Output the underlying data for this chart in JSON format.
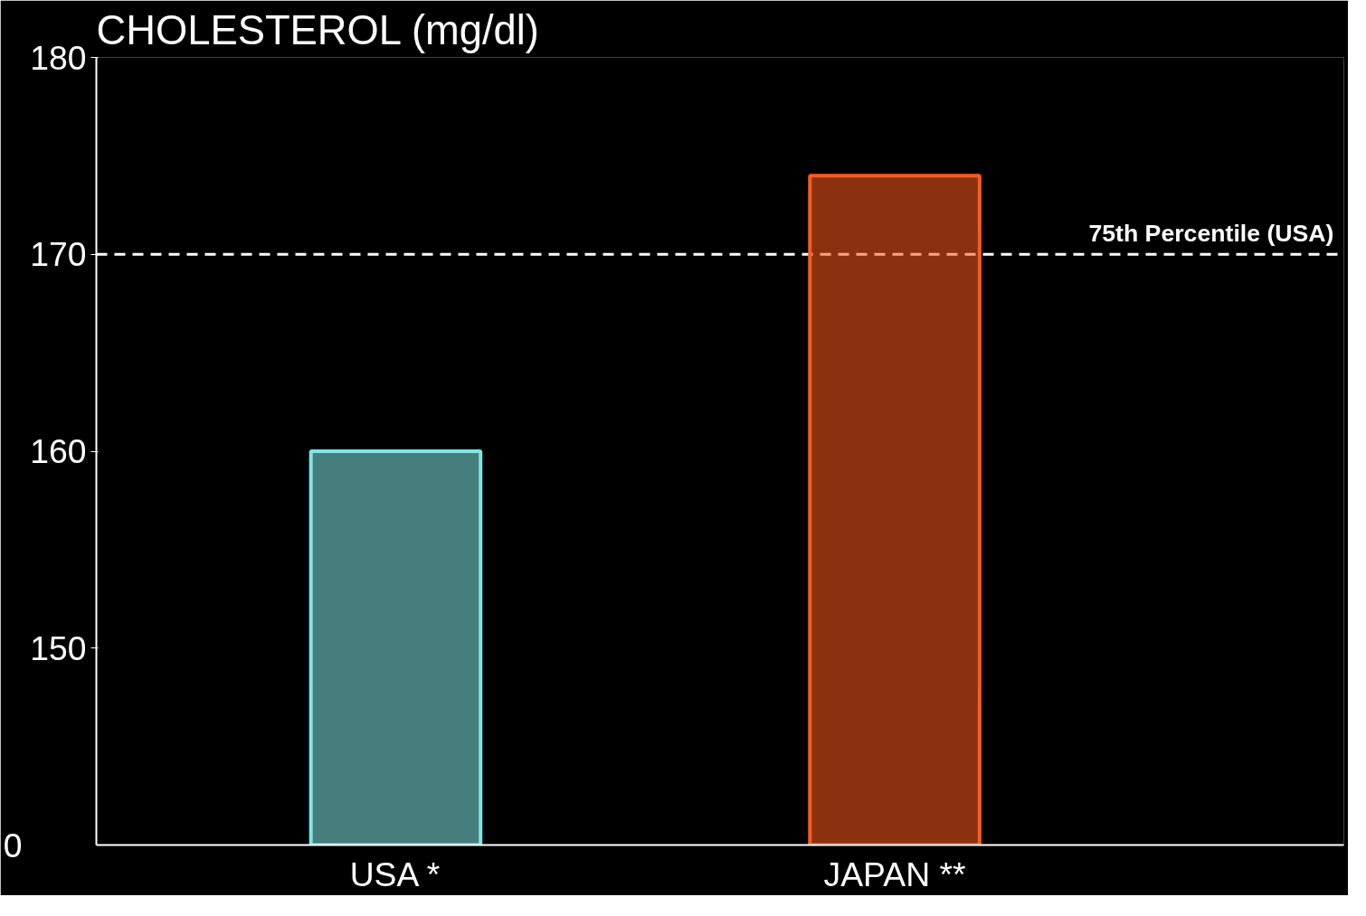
{
  "chart_data": {
    "type": "bar",
    "title": "CHOLESTEROL (mg/dl)",
    "categories": [
      "USA *",
      "JAPAN **"
    ],
    "values": [
      160,
      174
    ],
    "colors": [
      "#7fe6e6",
      "#ff5a1e"
    ],
    "ylim": [
      140,
      180
    ],
    "yticks": [
      150,
      160,
      170,
      180
    ],
    "annotations": [
      "0"
    ],
    "ref_lines": [
      {
        "axis": "y",
        "value": 170,
        "label": "75th Percentile (USA)",
        "color": "#ffffff",
        "line_style": "dashed"
      }
    ],
    "grid": false
  }
}
